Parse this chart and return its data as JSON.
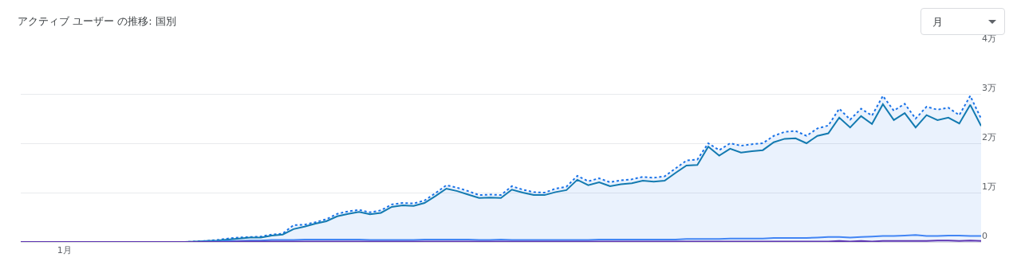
{
  "chart_data": {
    "type": "line",
    "title": "アクティブ ユーザー の推移: 国別",
    "annotations": [
      "月"
    ],
    "categories": [
      null,
      null,
      null,
      null,
      "1月",
      null,
      null,
      null,
      null,
      null,
      null,
      null,
      null,
      null,
      null,
      null,
      null,
      null,
      null,
      null,
      null,
      null,
      null,
      null,
      null,
      null,
      null,
      null,
      null,
      null,
      null,
      null,
      null,
      null,
      null,
      null,
      null,
      null,
      null,
      null,
      null,
      null,
      null,
      null,
      null,
      null,
      null,
      null,
      null,
      null,
      null,
      null,
      null,
      null,
      null,
      null,
      null,
      null,
      null,
      null,
      null,
      null,
      null,
      null,
      null,
      null,
      null,
      null,
      null,
      null,
      null,
      null,
      null,
      null,
      null,
      null,
      null,
      null,
      null,
      null,
      null,
      null,
      null,
      null,
      null,
      null,
      null,
      null,
      null
    ],
    "series": [
      {
        "type": "area",
        "line_style": "dotted",
        "color": "#1a73e8",
        "values": [
          0,
          0,
          0,
          0,
          0,
          0,
          0,
          0,
          0,
          0,
          0,
          0,
          0,
          0,
          0,
          0,
          0.01,
          0.02,
          0.04,
          0.07,
          0.09,
          0.1,
          0.11,
          0.15,
          0.17,
          0.34,
          0.35,
          0.4,
          0.46,
          0.57,
          0.62,
          0.65,
          0.6,
          0.64,
          0.76,
          0.79,
          0.78,
          0.84,
          0.99,
          1.15,
          1.1,
          1.03,
          0.95,
          0.96,
          0.95,
          1.13,
          1.06,
          1.01,
          1.0,
          1.08,
          1.12,
          1.34,
          1.23,
          1.29,
          1.21,
          1.25,
          1.27,
          1.32,
          1.3,
          1.33,
          1.49,
          1.65,
          1.67,
          2.0,
          1.86,
          2.0,
          1.95,
          1.98,
          2.0,
          2.15,
          2.23,
          2.25,
          2.15,
          2.3,
          2.36,
          2.7,
          2.48,
          2.7,
          2.56,
          2.96,
          2.66,
          2.8,
          2.5,
          2.74,
          2.68,
          2.72,
          2.57,
          2.96,
          2.5
        ]
      },
      {
        "type": "line",
        "line_style": "solid",
        "color": "#137ab0",
        "values": [
          null,
          null,
          null,
          null,
          null,
          null,
          null,
          null,
          null,
          null,
          null,
          null,
          null,
          null,
          0,
          0,
          0.01,
          0.02,
          0.03,
          0.05,
          0.07,
          0.09,
          0.09,
          0.13,
          0.15,
          0.26,
          0.31,
          0.37,
          0.42,
          0.52,
          0.57,
          0.61,
          0.56,
          0.59,
          0.71,
          0.74,
          0.73,
          0.79,
          0.93,
          1.08,
          1.03,
          0.96,
          0.89,
          0.9,
          0.89,
          1.06,
          1.0,
          0.95,
          0.95,
          1.01,
          1.05,
          1.26,
          1.15,
          1.21,
          1.13,
          1.17,
          1.19,
          1.24,
          1.22,
          1.24,
          1.4,
          1.55,
          1.56,
          1.93,
          1.75,
          1.89,
          1.81,
          1.84,
          1.86,
          2.02,
          2.09,
          2.1,
          2.0,
          2.15,
          2.2,
          2.52,
          2.32,
          2.55,
          2.39,
          2.79,
          2.47,
          2.61,
          2.32,
          2.57,
          2.47,
          2.52,
          2.4,
          2.78,
          2.35
        ]
      },
      {
        "type": "line",
        "line_style": "solid",
        "color": "#4285f4",
        "values": [
          null,
          null,
          null,
          null,
          null,
          null,
          null,
          null,
          null,
          null,
          null,
          null,
          null,
          null,
          0,
          0,
          0,
          0.01,
          0.01,
          0.02,
          0.02,
          0.03,
          0.03,
          0.04,
          0.04,
          0.04,
          0.05,
          0.05,
          0.05,
          0.05,
          0.05,
          0.05,
          0.04,
          0.04,
          0.04,
          0.04,
          0.04,
          0.05,
          0.05,
          0.05,
          0.05,
          0.05,
          0.04,
          0.04,
          0.05,
          0.04,
          0.04,
          0.04,
          0.04,
          0.04,
          0.04,
          0.04,
          0.04,
          0.05,
          0.05,
          0.05,
          0.05,
          0.05,
          0.05,
          0.05,
          0.05,
          0.06,
          0.06,
          0.06,
          0.06,
          0.07,
          0.07,
          0.07,
          0.07,
          0.08,
          0.08,
          0.08,
          0.08,
          0.09,
          0.1,
          0.1,
          0.09,
          0.1,
          0.11,
          0.12,
          0.12,
          0.13,
          0.14,
          0.12,
          0.12,
          0.13,
          0.13,
          0.12,
          0.12
        ]
      },
      {
        "type": "line",
        "line_style": "solid",
        "color": "#5e35b1",
        "values": [
          0,
          0,
          0,
          0,
          0,
          0,
          0,
          0,
          0,
          0,
          0,
          0,
          0,
          0,
          0,
          0,
          0,
          0,
          0,
          0,
          0.01,
          0.01,
          0.01,
          0.01,
          0.01,
          0.01,
          0.01,
          0.01,
          0.01,
          0.01,
          0.01,
          0.01,
          0.01,
          0.01,
          0.01,
          0.01,
          0.01,
          0.01,
          0.01,
          0.01,
          0.01,
          0.01,
          0.01,
          0.01,
          0.01,
          0.01,
          0.01,
          0.01,
          0.01,
          0.01,
          0.01,
          0.01,
          0.01,
          0.01,
          0.01,
          0.01,
          0.01,
          0.01,
          0.01,
          0.01,
          0.01,
          0.01,
          0.01,
          0.01,
          0.01,
          0.01,
          0.01,
          0.01,
          0.01,
          0.01,
          0.01,
          0.01,
          0.01,
          0.01,
          0.01,
          0.02,
          0.01,
          0.02,
          0.01,
          0.02,
          0.02,
          0.02,
          0.02,
          0.02,
          0.03,
          0.03,
          0.02,
          0.03,
          0.02
        ]
      }
    ],
    "ylim": [
      0,
      4
    ],
    "yticks": [
      0,
      {
        "value": 1,
        "label": "1万"
      },
      {
        "value": 2,
        "label": "2万"
      },
      {
        "value": 3,
        "label": "3万"
      },
      {
        "value": 4,
        "label": "4万"
      }
    ],
    "grid": "y",
    "marker": "none"
  }
}
